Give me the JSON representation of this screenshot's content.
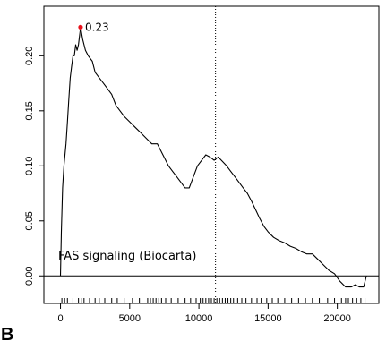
{
  "chart_data": {
    "type": "line",
    "title": "FAS signaling (Biocarta)",
    "xlabel": "",
    "ylabel": "",
    "xlim": [
      -1200,
      23000
    ],
    "ylim": [
      -0.025,
      0.245
    ],
    "x_ticks": [
      0,
      5000,
      10000,
      15000,
      20000
    ],
    "x_tick_labels": [
      "0",
      "5000",
      "10000",
      "15000",
      "20000"
    ],
    "y_ticks": [
      0.0,
      0.05,
      0.1,
      0.15,
      0.2
    ],
    "y_tick_labels": [
      "0.00",
      "0.05",
      "0.10",
      "0.15",
      "0.20"
    ],
    "zero_line": 0,
    "vline_x": 11200,
    "peak": {
      "x": 1450,
      "y": 0.226,
      "label": "0.23",
      "color": "#e8101a"
    },
    "panel_letter": "B",
    "series": [
      {
        "color": "#000000",
        "x": [
          0,
          30,
          60,
          150,
          250,
          400,
          500,
          600,
          700,
          800,
          900,
          1000,
          1100,
          1200,
          1300,
          1450,
          1600,
          1800,
          2000,
          2300,
          2500,
          2800,
          3100,
          3400,
          3700,
          4000,
          4300,
          4600,
          5000,
          5400,
          5800,
          6200,
          6600,
          7000,
          7400,
          7800,
          8100,
          8400,
          8700,
          9000,
          9300,
          9600,
          9900,
          10200,
          10500,
          10800,
          11100,
          11400,
          11700,
          12000,
          12300,
          12600,
          12900,
          13200,
          13500,
          13800,
          14100,
          14400,
          14700,
          15000,
          15400,
          15800,
          16200,
          16600,
          17000,
          17400,
          17800,
          18200,
          18600,
          19000,
          19400,
          19800,
          20200,
          20600,
          21000,
          21300,
          21600,
          21900,
          22100
        ],
        "y": [
          0.0,
          0.02,
          0.04,
          0.08,
          0.1,
          0.12,
          0.14,
          0.16,
          0.18,
          0.19,
          0.2,
          0.2,
          0.21,
          0.205,
          0.21,
          0.226,
          0.215,
          0.205,
          0.2,
          0.195,
          0.185,
          0.18,
          0.175,
          0.17,
          0.165,
          0.155,
          0.15,
          0.145,
          0.14,
          0.135,
          0.13,
          0.125,
          0.12,
          0.12,
          0.11,
          0.1,
          0.095,
          0.09,
          0.085,
          0.08,
          0.08,
          0.09,
          0.1,
          0.105,
          0.11,
          0.108,
          0.105,
          0.108,
          0.104,
          0.1,
          0.095,
          0.09,
          0.085,
          0.08,
          0.075,
          0.068,
          0.06,
          0.052,
          0.045,
          0.04,
          0.035,
          0.032,
          0.03,
          0.027,
          0.025,
          0.022,
          0.02,
          0.02,
          0.015,
          0.01,
          0.005,
          0.002,
          -0.005,
          -0.01,
          -0.01,
          -0.008,
          -0.01,
          -0.01,
          0.0
        ]
      }
    ],
    "rug_x": [
      100,
      300,
      500,
      900,
      1300,
      1500,
      1700,
      2100,
      2500,
      2800,
      3200,
      3700,
      4100,
      4600,
      5200,
      5700,
      6300,
      6500,
      6700,
      6900,
      7100,
      7300,
      7600,
      8000,
      8500,
      9000,
      9400,
      9800,
      10100,
      10300,
      10500,
      10700,
      10900,
      11100,
      11300,
      11500,
      11700,
      11900,
      12100,
      12300,
      12500,
      12800,
      13100,
      13400,
      13800,
      14200,
      14500,
      14900,
      15300,
      15700,
      16200,
      16700,
      17200,
      17700,
      18200,
      18700,
      19300,
      19800,
      20300,
      20600,
      20800,
      21100,
      21400,
      21700,
      22000
    ]
  }
}
